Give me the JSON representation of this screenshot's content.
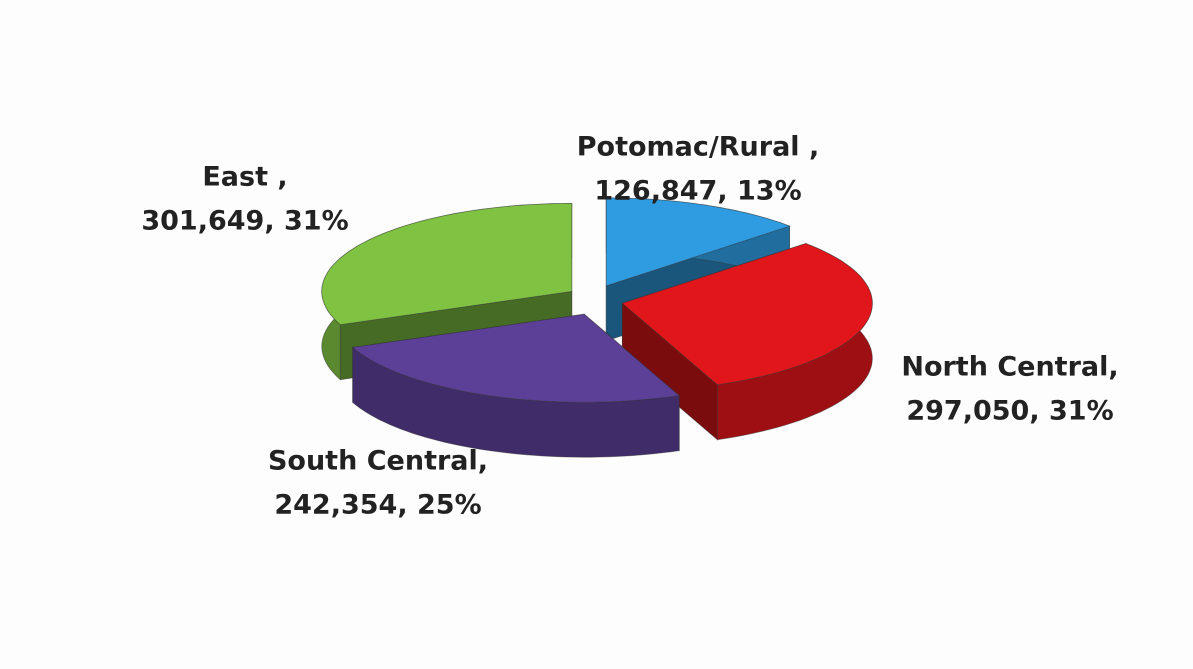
{
  "chart_data": {
    "type": "pie",
    "categories": [
      "Potomac/Rural ,",
      "North Central,",
      "South Central,",
      "East ,"
    ],
    "values": [
      126847,
      297050,
      242354,
      301649
    ],
    "value_labels": [
      "126,847, 13%",
      "297,050, 31%",
      "242,354, 25%",
      "301,649, 31%"
    ],
    "colors": [
      "#2f9be0",
      "#e0161a",
      "#5c3f96",
      "#80c343"
    ]
  }
}
